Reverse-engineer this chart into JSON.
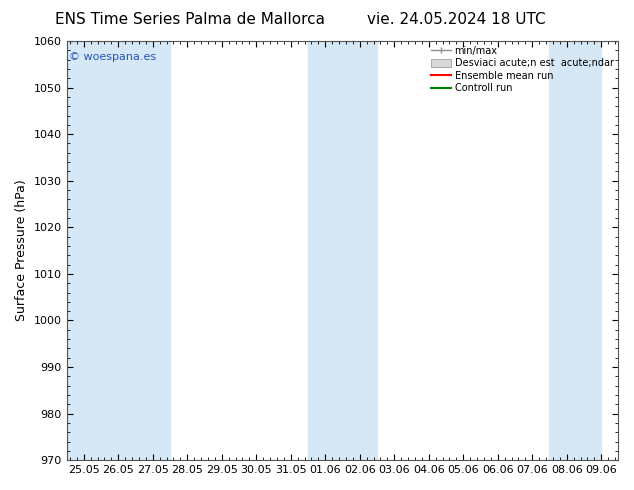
{
  "title_left": "ENS Time Series Palma de Mallorca",
  "title_right": "vie. 24.05.2024 18 UTC",
  "ylabel": "Surface Pressure (hPa)",
  "ylim": [
    970,
    1060
  ],
  "yticks": [
    970,
    980,
    990,
    1000,
    1010,
    1020,
    1030,
    1040,
    1050,
    1060
  ],
  "xtick_labels": [
    "25.05",
    "26.05",
    "27.05",
    "28.05",
    "29.05",
    "30.05",
    "31.05",
    "01.06",
    "02.06",
    "03.06",
    "04.06",
    "05.06",
    "06.06",
    "07.06",
    "08.06",
    "09.06"
  ],
  "shaded_bands_left": [
    -0.5,
    0.5,
    1.5,
    6.5,
    7.5,
    13.5
  ],
  "shaded_bands_right": [
    0.5,
    1.5,
    2.5,
    7.5,
    8.5,
    15.0
  ],
  "band_color": "#d6e8f5",
  "watermark": "© woespana.es",
  "legend_label_minmax": "min/max",
  "legend_label_std": "Desviaci acute;n est  acute;ndar",
  "legend_label_ensemble": "Ensemble mean run",
  "legend_label_control": "Controll run",
  "bg_color": "#ffffff",
  "plot_bg_color": "#ffffff",
  "title_fontsize": 11,
  "tick_fontsize": 8,
  "ylabel_fontsize": 9,
  "watermark_color": "#2255bb",
  "watermark_fontsize": 8,
  "spine_color": "#555555"
}
